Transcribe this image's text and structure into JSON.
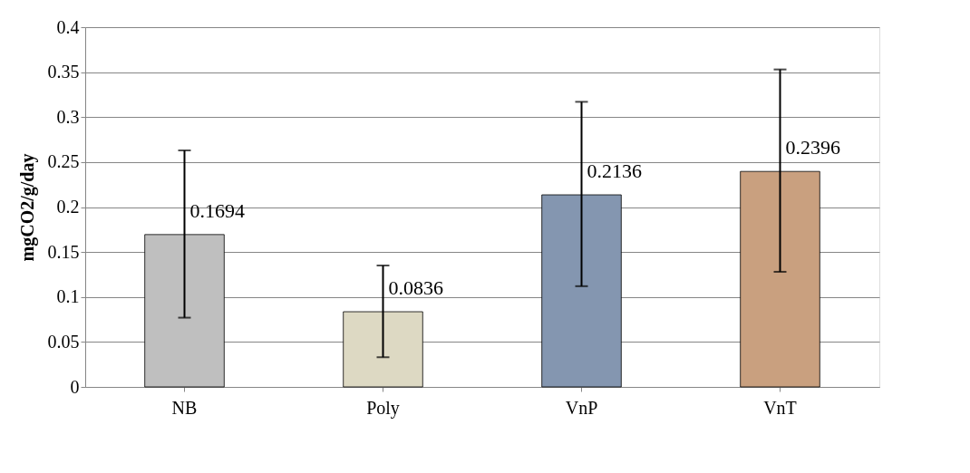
{
  "chart_data": {
    "type": "bar",
    "ylabel": "mgCO2/g/day",
    "categories": [
      "NB",
      "Poly",
      "VnP",
      "VnT"
    ],
    "values": [
      0.1694,
      0.0836,
      0.2136,
      0.2396
    ],
    "colors": [
      "#bfbfbf",
      "#ddd9c3",
      "#8496b0",
      "#c9a07f"
    ],
    "errors": [
      [
        0.077,
        0.263
      ],
      [
        0.033,
        0.135
      ],
      [
        0.112,
        0.317
      ],
      [
        0.128,
        0.353
      ]
    ],
    "data_labels": true,
    "ylim": [
      0,
      0.4
    ],
    "yticks": [
      0,
      0.05,
      0.1,
      0.15,
      0.2,
      0.25,
      0.3,
      0.35,
      0.4
    ],
    "grid": "y"
  }
}
